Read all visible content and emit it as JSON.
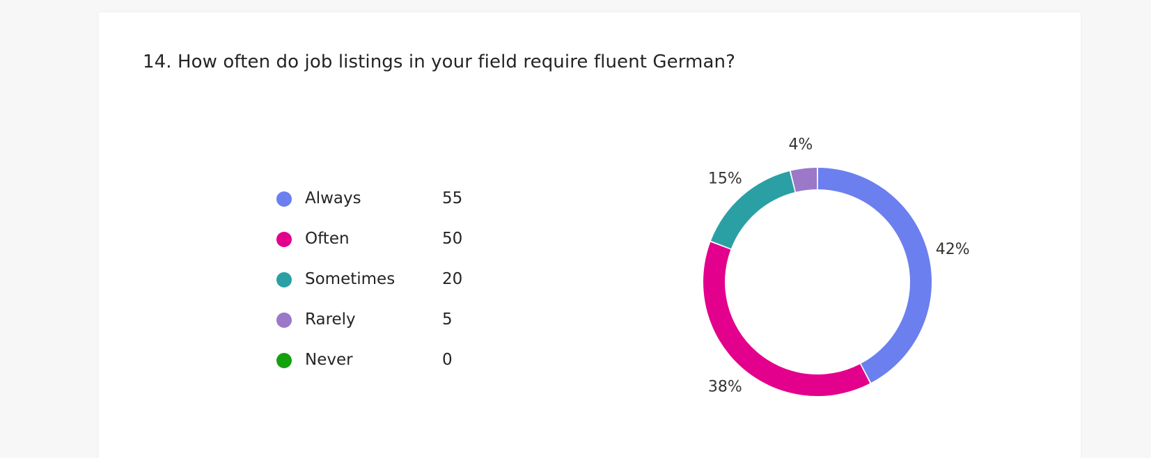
{
  "question": {
    "title": "14. How often do job listings in your field require fluent German?"
  },
  "chart_data": {
    "type": "pie",
    "donut": true,
    "categories": [
      "Always",
      "Often",
      "Sometimes",
      "Rarely",
      "Never"
    ],
    "values": [
      55,
      50,
      20,
      5,
      0
    ],
    "percent_labels": [
      "42%",
      "38%",
      "15%",
      "4%",
      ""
    ],
    "colors": [
      "#6b7fef",
      "#e3008c",
      "#2aa0a4",
      "#9b78c8",
      "#13a10e"
    ],
    "legend_position": "left"
  }
}
